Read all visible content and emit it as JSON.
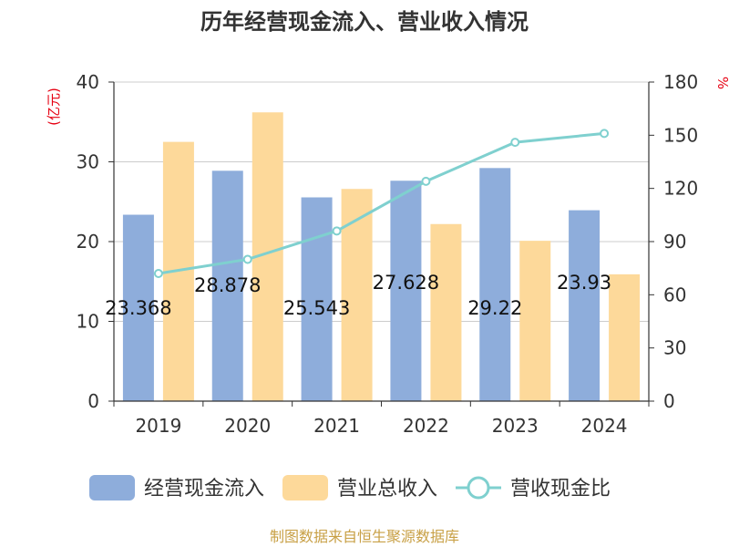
{
  "chart_data": {
    "type": "bar",
    "title": "历年经营现金流入、营业收入情况",
    "categories": [
      "2019",
      "2020",
      "2021",
      "2022",
      "2023",
      "2024"
    ],
    "series": [
      {
        "name": "经营现金流入",
        "kind": "bar",
        "axis": "left",
        "color": "#8eaddb",
        "values": [
          23.368,
          28.878,
          25.543,
          27.628,
          29.22,
          23.93
        ],
        "labels": [
          "23.368",
          "28.878",
          "25.543",
          "27.628",
          "29.22",
          "23.93"
        ]
      },
      {
        "name": "营业总收入",
        "kind": "bar",
        "axis": "left",
        "color": "#fdd99a",
        "values": [
          32.5,
          36.2,
          26.6,
          22.2,
          20.1,
          15.9
        ]
      },
      {
        "name": "营收现金比",
        "kind": "line",
        "axis": "right",
        "color": "#7fd0cf",
        "values": [
          72,
          80,
          96,
          124,
          146,
          151
        ]
      }
    ],
    "y_left": {
      "unit": "(亿元)",
      "min": 0,
      "max": 40,
      "ticks": [
        "0",
        "10",
        "20",
        "30",
        "40"
      ]
    },
    "y_right": {
      "unit": "%",
      "min": 0,
      "max": 180,
      "ticks": [
        "0",
        "30",
        "60",
        "90",
        "120",
        "150",
        "180"
      ]
    },
    "grid": true,
    "legend_position": "bottom"
  },
  "source": "制图数据来自恒生聚源数据库"
}
